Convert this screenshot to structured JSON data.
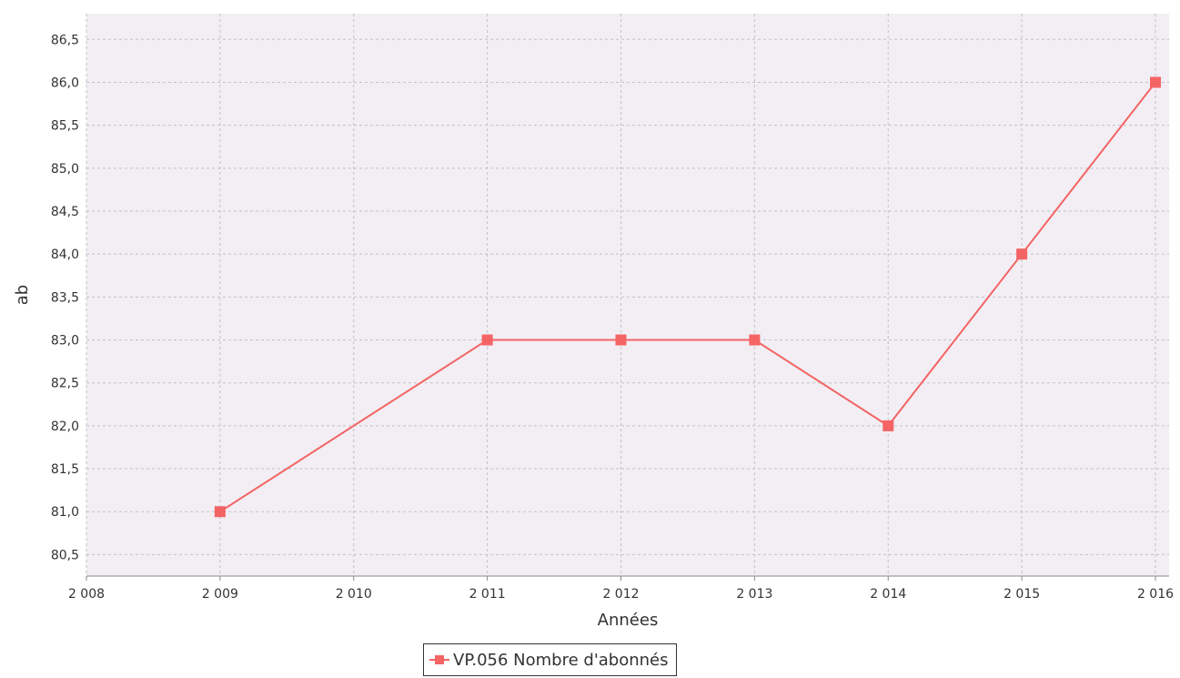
{
  "colors": {
    "plot_background": "#f2eef4",
    "grid": "#c4c0c8",
    "series": "#f46464",
    "axis": "#888888"
  },
  "chart_data": {
    "type": "line",
    "xlabel": "Années",
    "ylabel": "ab",
    "xlim": [
      2008,
      2016
    ],
    "ylim": [
      80.25,
      86.8
    ],
    "x_ticks": [
      2008,
      2009,
      2010,
      2011,
      2012,
      2013,
      2014,
      2015,
      2016
    ],
    "x_tick_labels": [
      "2 008",
      "2 009",
      "2 010",
      "2 011",
      "2 012",
      "2 013",
      "2 014",
      "2 015",
      "2 016"
    ],
    "y_ticks": [
      80.5,
      81.0,
      81.5,
      82.0,
      82.5,
      83.0,
      83.5,
      84.0,
      84.5,
      85.0,
      85.5,
      86.0,
      86.5
    ],
    "y_tick_labels": [
      "80,5",
      "81,0",
      "81,5",
      "82,0",
      "82,5",
      "83,0",
      "83,5",
      "84,0",
      "84,5",
      "85,0",
      "85,5",
      "86,0",
      "86,5"
    ],
    "grid": true,
    "legend_position": "bottom",
    "series": [
      {
        "name": "VP.056 Nombre d'abonnés",
        "marker": "square",
        "points": [
          {
            "x": 2009,
            "y": 81
          },
          {
            "x": 2011,
            "y": 83
          },
          {
            "x": 2012,
            "y": 83
          },
          {
            "x": 2013,
            "y": 83
          },
          {
            "x": 2014,
            "y": 82
          },
          {
            "x": 2015,
            "y": 84
          },
          {
            "x": 2016,
            "y": 86
          }
        ]
      }
    ]
  }
}
